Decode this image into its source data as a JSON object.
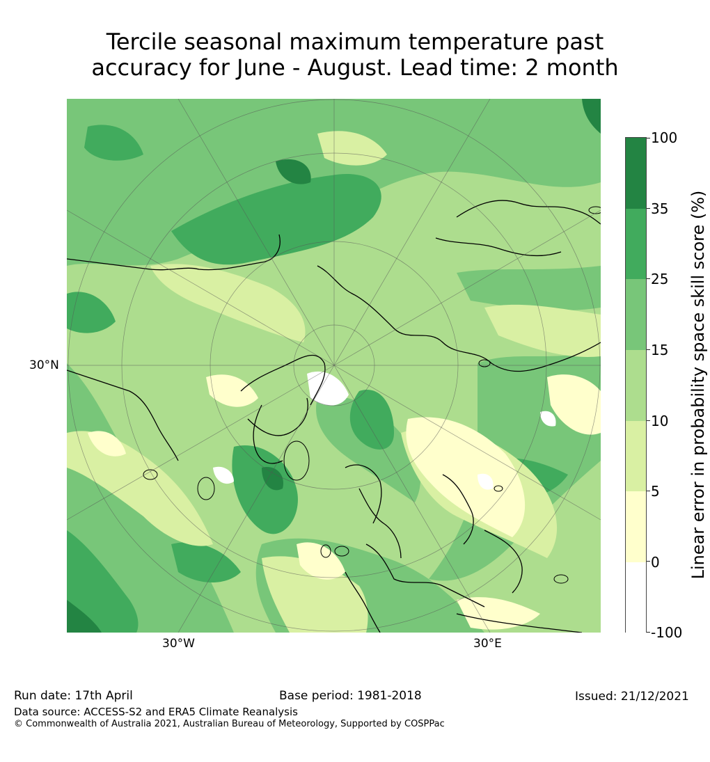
{
  "title": {
    "line1": "Tercile seasonal maximum temperature past",
    "line2": "accuracy for June - August. Lead time: 2 month"
  },
  "map": {
    "projection": "north-polar-stereographic",
    "gridline_labels": {
      "lat_30n": "30°N",
      "lon_30w": "30°W",
      "lon_30e": "30°E"
    }
  },
  "colorbar": {
    "title": "Linear error in probability space skill score (%)",
    "tick_labels": [
      "100",
      "35",
      "25",
      "15",
      "10",
      "5",
      "0",
      "-100"
    ],
    "levels": [
      {
        "from": "-100",
        "to": "0",
        "color": "#ffffff"
      },
      {
        "from": "0",
        "to": "5",
        "color": "#ffffcc"
      },
      {
        "from": "5",
        "to": "10",
        "color": "#d9f0a3"
      },
      {
        "from": "10",
        "to": "15",
        "color": "#addd8e"
      },
      {
        "from": "15",
        "to": "25",
        "color": "#78c679"
      },
      {
        "from": "25",
        "to": "35",
        "color": "#41ab5d"
      },
      {
        "from": "35",
        "to": "100",
        "color": "#238443"
      }
    ]
  },
  "footer": {
    "run_date": "Run date: 17th April",
    "base_period": "Base period: 1981-2018",
    "issued": "Issued: 21/12/2021",
    "data_source": "Data source: ACCESS-S2 and ERA5 Climate Reanalysis",
    "copyright": "© Commonwealth of Australia 2021, Australian Bureau of Meteorology, Supported by COSPPac"
  }
}
